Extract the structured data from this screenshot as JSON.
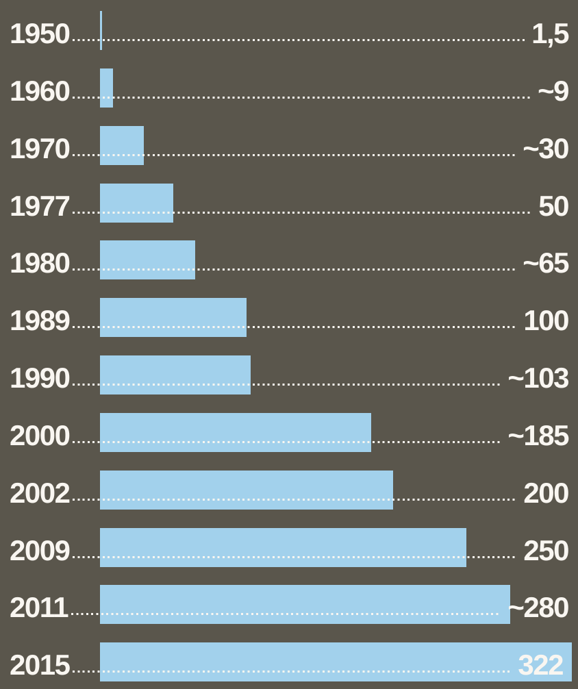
{
  "chart_data": {
    "type": "bar",
    "orientation": "horizontal",
    "title": "",
    "xlabel": "",
    "ylabel": "",
    "xlim": [
      0,
      322
    ],
    "grid": false,
    "legend": "none",
    "categories": [
      "1950",
      "1960",
      "1970",
      "1977",
      "1980",
      "1989",
      "1990",
      "2000",
      "2002",
      "2009",
      "2011",
      "2015"
    ],
    "values": [
      1.5,
      9,
      30,
      50,
      65,
      100,
      103,
      185,
      200,
      250,
      280,
      322
    ],
    "value_labels": [
      "1,5",
      "~9",
      "~30",
      "50",
      "~65",
      "100",
      "~103",
      "~185",
      "200",
      "250",
      "~280",
      "322"
    ],
    "colors": {
      "background": "#5a564c",
      "bar": "#a2d1ec",
      "text": "#f9f6f1"
    },
    "style_notes": {
      "leader": "dotted line from year label to value label, drawn behind bars",
      "last_value_position": "322 label rendered inside its bar"
    }
  }
}
